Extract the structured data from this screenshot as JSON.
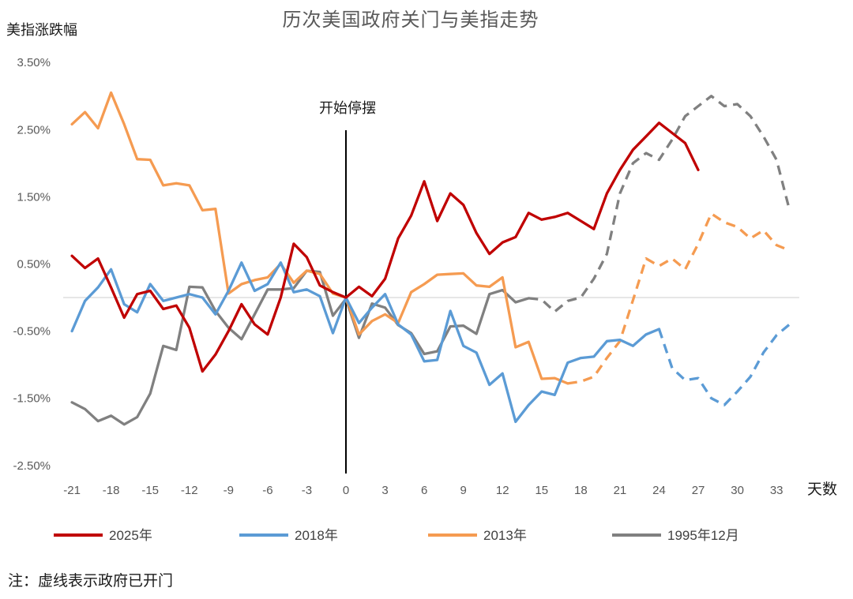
{
  "header": {
    "title": "历次美国政府关门与美指走势"
  },
  "y_axis_title": "美指涨跌幅",
  "x_axis_title": "天数",
  "annotation": {
    "label": "开始停摆",
    "x_day": 0
  },
  "footnote": "注：虚线表示政府已开门",
  "colors": {
    "red": "#C00000",
    "blue": "#5B9BD5",
    "orange": "#F59B51",
    "gray": "#808080",
    "zero_line": "#D6D6D6",
    "axis_text": "#595959",
    "annotation_line": "#000000"
  },
  "chart_data": {
    "type": "line",
    "title": "历次美国政府关门与美指走势",
    "xlabel": "天数",
    "ylabel": "美指涨跌幅",
    "grid": "zero-line-only",
    "legend_position": "bottom",
    "dash_meaning": "虚线表示政府已开门",
    "ylim": [
      -2.5,
      3.5
    ],
    "xlim": [
      -22,
      34.8
    ],
    "x_start": -21,
    "x_ticks": [
      -21,
      -18,
      -15,
      -12,
      -9,
      -6,
      -3,
      0,
      3,
      6,
      9,
      12,
      15,
      18,
      21,
      24,
      27,
      30,
      33
    ],
    "y_ticks": [
      {
        "label": "3.50%",
        "value": 3.5
      },
      {
        "label": "2.50%",
        "value": 2.5
      },
      {
        "label": "1.50%",
        "value": 1.5
      },
      {
        "label": "0.50%",
        "value": 0.5
      },
      {
        "label": "-0.50%",
        "value": -0.5
      },
      {
        "label": "-1.50%",
        "value": -1.5
      },
      {
        "label": "-2.50%",
        "value": -2.5
      }
    ],
    "series": [
      {
        "name": "1995年12月",
        "color": "#808080",
        "dash_from": 14,
        "values": [
          -1.56,
          -1.66,
          -1.84,
          -1.76,
          -1.89,
          -1.78,
          -1.43,
          -0.72,
          -0.78,
          0.16,
          0.15,
          -0.2,
          -0.45,
          -0.62,
          -0.25,
          0.12,
          0.12,
          0.14,
          0.4,
          0.38,
          -0.27,
          -0.02,
          -0.6,
          -0.09,
          -0.15,
          -0.41,
          -0.53,
          -0.84,
          -0.8,
          -0.43,
          -0.42,
          -0.54,
          0.05,
          0.11,
          -0.07,
          -0.01,
          -0.03,
          -0.21,
          -0.05,
          0.0,
          0.28,
          0.65,
          1.55,
          2.0,
          2.15,
          2.05,
          2.35,
          2.7,
          2.85,
          3.0,
          2.85,
          2.88,
          2.7,
          2.4,
          2.05,
          1.3
        ]
      },
      {
        "name": "2013年",
        "color": "#F59B51",
        "dash_from": 17,
        "values": [
          2.58,
          2.76,
          2.52,
          3.05,
          2.58,
          2.06,
          2.05,
          1.67,
          1.7,
          1.67,
          1.3,
          1.32,
          0.06,
          0.2,
          0.26,
          0.3,
          0.5,
          0.22,
          0.4,
          0.35,
          0.06,
          0.0,
          -0.55,
          -0.35,
          -0.25,
          -0.38,
          0.08,
          0.2,
          0.34,
          0.35,
          0.36,
          0.18,
          0.16,
          0.3,
          -0.74,
          -0.66,
          -1.21,
          -1.2,
          -1.28,
          -1.25,
          -1.18,
          -0.9,
          -0.65,
          -0.04,
          0.58,
          0.47,
          0.58,
          0.42,
          0.8,
          1.25,
          1.12,
          1.05,
          0.88,
          1.0,
          0.78,
          0.7
        ]
      },
      {
        "name": "2018年",
        "color": "#5B9BD5",
        "dash_from": 24,
        "values": [
          -0.5,
          -0.05,
          0.15,
          0.42,
          -0.1,
          -0.22,
          0.2,
          -0.05,
          0.0,
          0.05,
          0.0,
          -0.25,
          0.1,
          0.52,
          0.1,
          0.2,
          0.52,
          0.08,
          0.12,
          0.02,
          -0.53,
          0.0,
          -0.38,
          -0.15,
          0.05,
          -0.4,
          -0.55,
          -0.95,
          -0.93,
          -0.2,
          -0.72,
          -0.82,
          -1.3,
          -1.13,
          -1.85,
          -1.6,
          -1.4,
          -1.45,
          -0.97,
          -0.9,
          -0.88,
          -0.65,
          -0.63,
          -0.72,
          -0.55,
          -0.47,
          -1.05,
          -1.23,
          -1.2,
          -1.5,
          -1.6,
          -1.4,
          -1.18,
          -0.82,
          -0.56,
          -0.4
        ]
      },
      {
        "name": "2025年",
        "color": "#C00000",
        "dash_from": null,
        "values": [
          0.62,
          0.44,
          0.58,
          0.15,
          -0.3,
          0.05,
          0.1,
          -0.17,
          -0.12,
          -0.45,
          -1.1,
          -0.85,
          -0.5,
          -0.1,
          -0.4,
          -0.55,
          0.0,
          0.8,
          0.6,
          0.18,
          0.08,
          0.0,
          0.16,
          0.02,
          0.28,
          0.88,
          1.22,
          1.73,
          1.14,
          1.55,
          1.38,
          0.96,
          0.65,
          0.82,
          0.9,
          1.26,
          1.16,
          1.2,
          1.26,
          1.14,
          1.02,
          1.55,
          1.9,
          2.2,
          2.4,
          2.6,
          2.45,
          2.3,
          1.9
        ]
      }
    ],
    "legend_order": [
      "2025年",
      "2018年",
      "2013年",
      "1995年12月"
    ]
  }
}
